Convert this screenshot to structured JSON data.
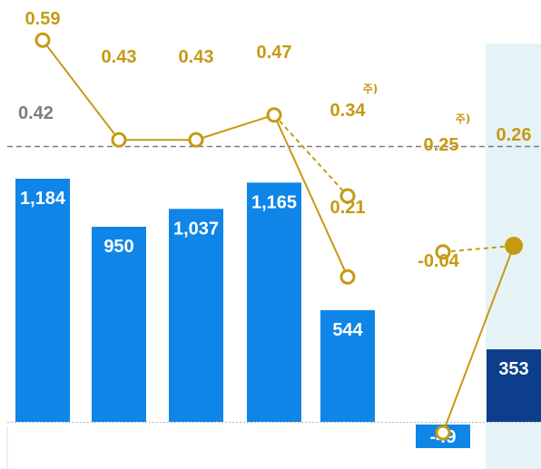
{
  "chart_data": {
    "type": "bar",
    "bars": [
      {
        "value": 1184,
        "label": "1,184",
        "color": "#0f85e8"
      },
      {
        "value": 950,
        "label": "950",
        "color": "#0f85e8"
      },
      {
        "value": 1037,
        "label": "1,037",
        "color": "#0f85e8"
      },
      {
        "value": 1165,
        "label": "1,165",
        "color": "#0f85e8"
      },
      {
        "value": 544,
        "label": "544",
        "color": "#0f85e8"
      },
      {
        "value": -49,
        "label": "-49",
        "color": "#0f85e8"
      },
      {
        "value": 353,
        "label": "353",
        "color": "#0c3e8c"
      }
    ],
    "line_series": [
      {
        "style": "solid",
        "points": [
          {
            "x": 0,
            "y": 0.59,
            "label": "0.59",
            "marker": "hollow"
          },
          {
            "x": 1,
            "y": 0.43,
            "label": "0.43",
            "marker": "hollow"
          },
          {
            "x": 2,
            "y": 0.43,
            "label": "0.43",
            "marker": "hollow"
          },
          {
            "x": 3,
            "y": 0.47,
            "label": "0.47",
            "marker": "hollow"
          },
          {
            "x": 4,
            "y": 0.21,
            "label": "0.21",
            "marker": "hollow"
          }
        ]
      },
      {
        "style": "dashed",
        "points": [
          {
            "x": 3,
            "y": 0.47,
            "marker": "none"
          },
          {
            "x": 4,
            "y": 0.34,
            "label": "0.34",
            "marker": "hollow",
            "note": "주)"
          }
        ]
      },
      {
        "style": "solid",
        "points": [
          {
            "x": 5,
            "y": -0.04,
            "label": "-0.04",
            "marker": "hollow"
          },
          {
            "x": 6,
            "y": 0.26,
            "label": "0.26",
            "marker": "filled"
          }
        ]
      },
      {
        "style": "dashed",
        "points": [
          {
            "x": 5,
            "y": 0.25,
            "label": "0.25",
            "marker": "hollow",
            "note": "주)"
          },
          {
            "x": 6,
            "y": 0.26,
            "marker": "none"
          }
        ]
      }
    ],
    "reference_line": {
      "value": 0.42,
      "label": "0.42",
      "style": "dashed"
    },
    "highlight_last_column": true,
    "grid": false,
    "colors": {
      "bar": "#0f85e8",
      "bar_highlight": "#0c3e8c",
      "line": "#c59a12",
      "reference": "#7d7d7d",
      "highlight_bg": "#e6f3f6"
    }
  }
}
